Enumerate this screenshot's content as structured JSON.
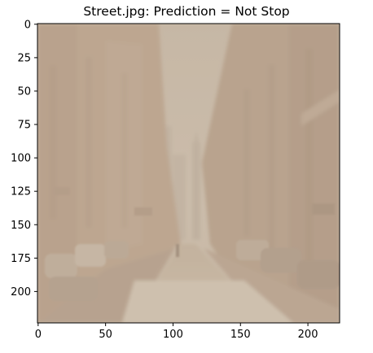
{
  "chart_data": {
    "type": "image",
    "title": "Street.jpg: Prediction = Not Stop",
    "image_description": "Faded, low-contrast photo of a city street lined with tall buildings, cars parked along both sides, a distant skyscraper at the vanishing point",
    "image_width": 224,
    "image_height": 224,
    "xlim": [
      -0.5,
      223.5
    ],
    "ylim": [
      223.5,
      -0.5
    ],
    "x_ticks": [
      0,
      50,
      100,
      150,
      200
    ],
    "y_ticks": [
      0,
      25,
      50,
      75,
      100,
      125,
      150,
      175,
      200
    ],
    "grid": false,
    "legend": "none",
    "colors": {
      "haze": "#c8b8a4",
      "sky": "#c9bcab",
      "buildings_left": "#b49b84",
      "buildings_right": "#ad9580",
      "road": "#c4b4a0",
      "axis": "#000000"
    }
  }
}
